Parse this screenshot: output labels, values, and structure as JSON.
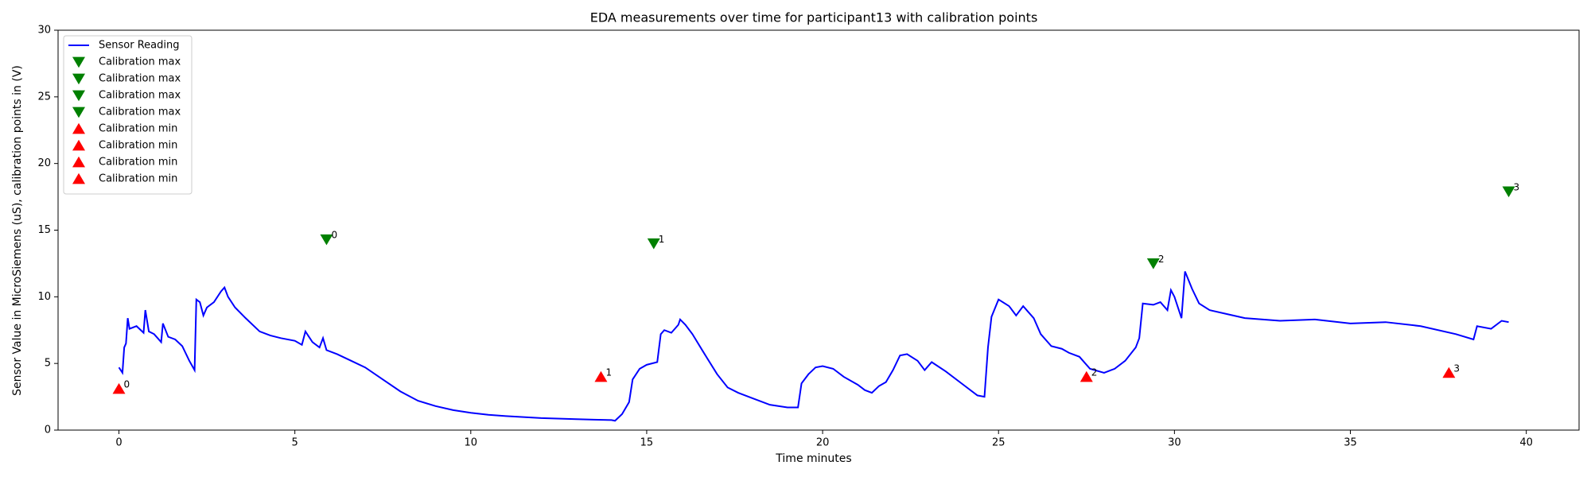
{
  "chart_data": {
    "type": "line",
    "title": "EDA measurements over time for participant13 with calibration points",
    "xlabel": "Time minutes",
    "ylabel": "Sensor Value in MicroSiemens (uS), calibration points in (V)",
    "xlim": [
      -1.73,
      41.5
    ],
    "ylim": [
      0,
      30
    ],
    "xticks": [
      0,
      5,
      10,
      15,
      20,
      25,
      30,
      35,
      40
    ],
    "yticks": [
      0,
      5,
      10,
      15,
      20,
      25,
      30
    ],
    "legend": "upper left",
    "series": [
      {
        "name": "Sensor Reading",
        "type": "line",
        "color": "#0000ff",
        "x": [
          0,
          0.1,
          0.15,
          0.2,
          0.25,
          0.3,
          0.5,
          0.7,
          0.75,
          0.85,
          1.0,
          1.2,
          1.25,
          1.4,
          1.6,
          1.8,
          2.0,
          2.15,
          2.2,
          2.3,
          2.4,
          2.5,
          2.7,
          2.9,
          3.0,
          3.1,
          3.3,
          3.6,
          4.0,
          4.3,
          4.6,
          5.0,
          5.2,
          5.3,
          5.5,
          5.7,
          5.8,
          5.9,
          6.2,
          6.6,
          7.0,
          7.5,
          8.0,
          8.5,
          9.0,
          9.5,
          10.0,
          10.5,
          11.0,
          12.0,
          13.0,
          13.5,
          14.0,
          14.1,
          14.3,
          14.5,
          14.6,
          14.8,
          15.0,
          15.3,
          15.4,
          15.5,
          15.7,
          15.9,
          15.95,
          16.1,
          16.3,
          16.6,
          17.0,
          17.3,
          17.6,
          18.0,
          18.5,
          19.0,
          19.3,
          19.4,
          19.6,
          19.8,
          20.0,
          20.3,
          20.6,
          21.0,
          21.2,
          21.4,
          21.6,
          21.8,
          22.0,
          22.2,
          22.4,
          22.7,
          22.9,
          23.1,
          23.5,
          24.0,
          24.4,
          24.6,
          24.7,
          24.8,
          25.0,
          25.3,
          25.5,
          25.7,
          26.0,
          26.2,
          26.5,
          26.8,
          27.0,
          27.3,
          27.6,
          28.0,
          28.3,
          28.6,
          28.9,
          29.0,
          29.1,
          29.4,
          29.6,
          29.8,
          29.9,
          30.0,
          30.2,
          30.3,
          30.5,
          30.7,
          31.0,
          31.5,
          32.0,
          33.0,
          34.0,
          35.0,
          36.0,
          37.0,
          38.0,
          38.5,
          38.6,
          39.0,
          39.3,
          39.5
        ],
        "values": [
          4.7,
          4.3,
          6.2,
          6.5,
          8.4,
          7.6,
          7.8,
          7.3,
          9.0,
          7.4,
          7.2,
          6.6,
          8.0,
          7.0,
          6.8,
          6.3,
          5.2,
          4.5,
          9.8,
          9.6,
          8.6,
          9.2,
          9.6,
          10.4,
          10.7,
          10.0,
          9.2,
          8.4,
          7.4,
          7.1,
          6.9,
          6.7,
          6.4,
          7.4,
          6.6,
          6.2,
          6.9,
          6.0,
          5.7,
          5.2,
          4.7,
          3.8,
          2.9,
          2.2,
          1.8,
          1.5,
          1.3,
          1.15,
          1.05,
          0.9,
          0.82,
          0.78,
          0.75,
          0.7,
          1.2,
          2.1,
          3.8,
          4.6,
          4.9,
          5.1,
          7.2,
          7.5,
          7.3,
          7.9,
          8.3,
          7.9,
          7.2,
          5.9,
          4.2,
          3.2,
          2.8,
          2.4,
          1.9,
          1.7,
          1.7,
          3.5,
          4.2,
          4.7,
          4.8,
          4.6,
          4.0,
          3.4,
          3.0,
          2.8,
          3.3,
          3.6,
          4.5,
          5.6,
          5.7,
          5.2,
          4.5,
          5.1,
          4.4,
          3.4,
          2.6,
          2.5,
          6.2,
          8.5,
          9.8,
          9.3,
          8.6,
          9.3,
          8.4,
          7.2,
          6.3,
          6.1,
          5.8,
          5.5,
          4.6,
          4.3,
          4.6,
          5.2,
          6.2,
          6.9,
          9.5,
          9.4,
          9.6,
          9.0,
          10.5,
          10.0,
          8.4,
          11.9,
          10.6,
          9.5,
          9.0,
          8.7,
          8.4,
          8.2,
          8.3,
          8.0,
          8.1,
          7.8,
          7.2,
          6.8,
          7.8,
          7.6,
          8.2,
          8.1
        ]
      },
      {
        "name": "Calibration max",
        "type": "scatter",
        "marker": "triangle-down",
        "color": "#008000",
        "x": [
          5.9
        ],
        "values": [
          14.3
        ],
        "labels": [
          "0"
        ]
      },
      {
        "name": "Calibration max",
        "type": "scatter",
        "marker": "triangle-down",
        "color": "#008000",
        "x": [
          15.2
        ],
        "values": [
          14.0
        ],
        "labels": [
          "1"
        ]
      },
      {
        "name": "Calibration max",
        "type": "scatter",
        "marker": "triangle-down",
        "color": "#008000",
        "x": [
          29.4
        ],
        "values": [
          12.5
        ],
        "labels": [
          "2"
        ]
      },
      {
        "name": "Calibration max",
        "type": "scatter",
        "marker": "triangle-down",
        "color": "#008000",
        "x": [
          39.5
        ],
        "values": [
          17.9
        ],
        "labels": [
          "3"
        ]
      },
      {
        "name": "Calibration min",
        "type": "scatter",
        "marker": "triangle-up",
        "color": "#ff0000",
        "x": [
          0
        ],
        "values": [
          3.1
        ],
        "labels": [
          "0"
        ]
      },
      {
        "name": "Calibration min",
        "type": "scatter",
        "marker": "triangle-up",
        "color": "#ff0000",
        "x": [
          13.7
        ],
        "values": [
          4.0
        ],
        "labels": [
          "1"
        ]
      },
      {
        "name": "Calibration min",
        "type": "scatter",
        "marker": "triangle-up",
        "color": "#ff0000",
        "x": [
          27.5
        ],
        "values": [
          4.0
        ],
        "labels": [
          "2"
        ]
      },
      {
        "name": "Calibration min",
        "type": "scatter",
        "marker": "triangle-up",
        "color": "#ff0000",
        "x": [
          37.8
        ],
        "values": [
          4.3
        ],
        "labels": [
          "3"
        ]
      }
    ]
  }
}
